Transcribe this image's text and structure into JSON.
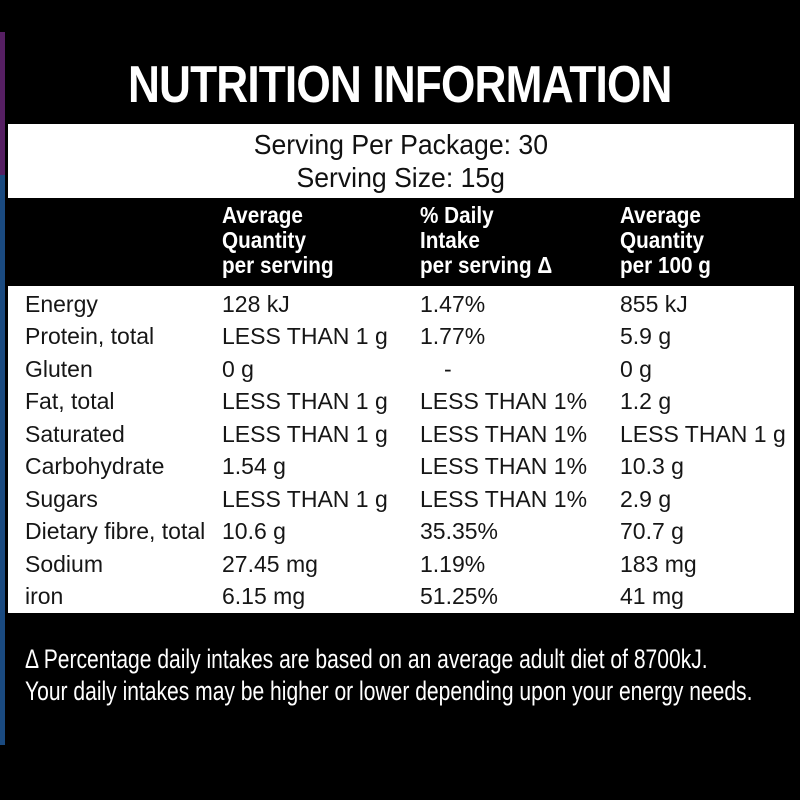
{
  "colors": {
    "background": "#000000",
    "panel": "#ffffff",
    "left_strip_purple": "#561f63",
    "left_strip_blue": "#1a4a80"
  },
  "title": "NUTRITION INFORMATION",
  "serving": {
    "per_package": "Serving Per Package: 30",
    "size": "Serving Size: 15g"
  },
  "table": {
    "columns": [
      {
        "lines": [
          "Average",
          "Quantity",
          "per serving"
        ]
      },
      {
        "lines": [
          "% Daily",
          "Intake",
          "per serving Δ"
        ]
      },
      {
        "lines": [
          "Average",
          "Quantity",
          "per 100 g"
        ]
      }
    ],
    "rows": [
      {
        "nutrient": "Energy",
        "per_serving": "128 kJ",
        "daily_intake": "1.47%",
        "per_100g": "855 kJ"
      },
      {
        "nutrient": "Protein, total",
        "per_serving": "LESS THAN 1 g",
        "daily_intake": "1.77%",
        "per_100g": "5.9 g"
      },
      {
        "nutrient": "Gluten",
        "per_serving": "0 g",
        "daily_intake": "-",
        "per_100g": "0 g"
      },
      {
        "nutrient": "Fat, total",
        "per_serving": "LESS THAN 1 g",
        "daily_intake": "LESS THAN 1%",
        "per_100g": "1.2 g"
      },
      {
        "nutrient": "Saturated",
        "per_serving": "LESS THAN 1 g",
        "daily_intake": "LESS THAN 1%",
        "per_100g": "LESS THAN 1 g"
      },
      {
        "nutrient": "Carbohydrate",
        "per_serving": "1.54 g",
        "daily_intake": "LESS THAN 1%",
        "per_100g": "10.3 g"
      },
      {
        "nutrient": "Sugars",
        "per_serving": "LESS THAN 1 g",
        "daily_intake": "LESS THAN 1%",
        "per_100g": "2.9 g"
      },
      {
        "nutrient": "Dietary fibre, total",
        "per_serving": "10.6 g",
        "daily_intake": "35.35%",
        "per_100g": "70.7 g"
      },
      {
        "nutrient": "Sodium",
        "per_serving": "27.45 mg",
        "daily_intake": "1.19%",
        "per_100g": "183 mg"
      },
      {
        "nutrient": "iron",
        "per_serving": "6.15 mg",
        "daily_intake": "51.25%",
        "per_100g": "41 mg"
      }
    ]
  },
  "footnote": {
    "line1": "Δ Percentage daily intakes are based on an average adult diet of 8700kJ.",
    "line2": "Your daily intakes may be higher or lower depending upon your energy needs."
  }
}
